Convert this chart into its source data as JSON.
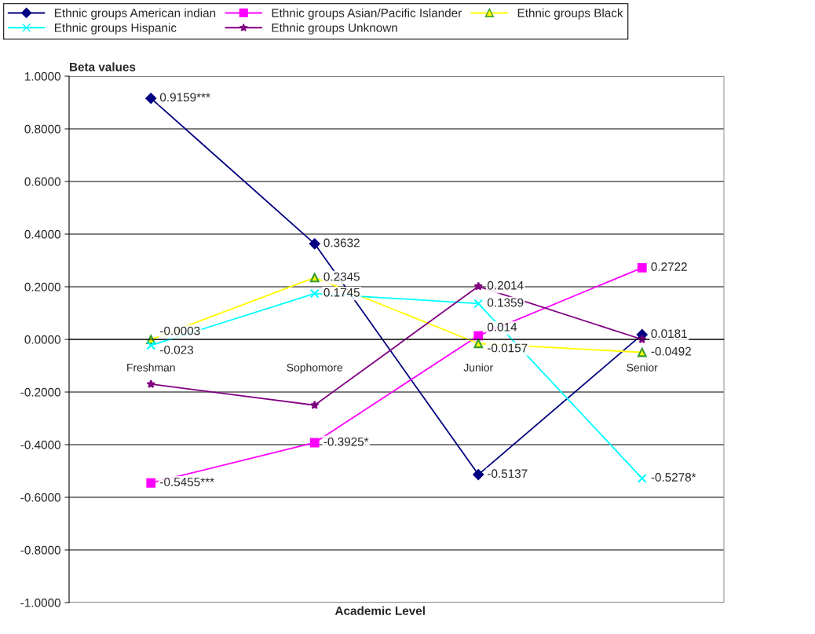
{
  "chart_data": {
    "type": "line",
    "ylabel": "Beta values",
    "xlabel": "Academic Level",
    "categories": [
      "Freshman",
      "Sophomore",
      "Junior",
      "Senior"
    ],
    "series": [
      {
        "name": "Ethnic groups American indian",
        "color": "#000080",
        "marker": "diamond",
        "values": [
          0.9159,
          0.3632,
          -0.5137,
          0.0181
        ],
        "value_labels": [
          "0.9159***",
          "0.3632",
          "-0.5137",
          "0.0181"
        ]
      },
      {
        "name": "Ethnic groups Asian/Pacific Islander",
        "color": "#ff00ff",
        "marker": "square",
        "values": [
          -0.5455,
          -0.3925,
          0.014,
          0.2722
        ],
        "value_labels": [
          "-0.5455***",
          "-0.3925*",
          "0.014",
          "0.2722"
        ]
      },
      {
        "name": "Ethnic groups Black",
        "color": "#ffff00",
        "marker": "triangle",
        "values": [
          -0.0003,
          0.2345,
          -0.0157,
          -0.0492
        ],
        "value_labels": [
          "-0.0003",
          "0.2345",
          "-0.0157",
          "-0.0492"
        ]
      },
      {
        "name": "Ethnic groups Hispanic",
        "color": "#00ffff",
        "marker": "cross",
        "values": [
          -0.023,
          0.1745,
          0.1359,
          -0.5278
        ],
        "value_labels": [
          "-0.023",
          "0.1745",
          "0.1359",
          "-0.5278*"
        ]
      },
      {
        "name": "Ethnic groups Unknown",
        "color": "#800080",
        "marker": "star",
        "values": [
          -0.17,
          -0.25,
          0.2014,
          0.0
        ],
        "value_labels": [
          null,
          null,
          "0.2014",
          null
        ]
      }
    ],
    "ylim": [
      -1.0,
      1.0
    ],
    "yticks": [
      {
        "value": -1.0,
        "label": "-1.0000"
      },
      {
        "value": -0.8,
        "label": "-0.8000"
      },
      {
        "value": -0.6,
        "label": "-0.6000"
      },
      {
        "value": -0.4,
        "label": "-0.4000"
      },
      {
        "value": -0.2,
        "label": "-0.2000"
      },
      {
        "value": 0.0,
        "label": "0.0000"
      },
      {
        "value": 0.2,
        "label": "0.2000"
      },
      {
        "value": 0.4,
        "label": "0.4000"
      },
      {
        "value": 0.6,
        "label": "0.6000"
      },
      {
        "value": 0.8,
        "label": "0.8000"
      },
      {
        "value": 1.0,
        "label": "1.0000"
      }
    ],
    "grid": "y",
    "legend": "top",
    "line_style": "solid"
  }
}
